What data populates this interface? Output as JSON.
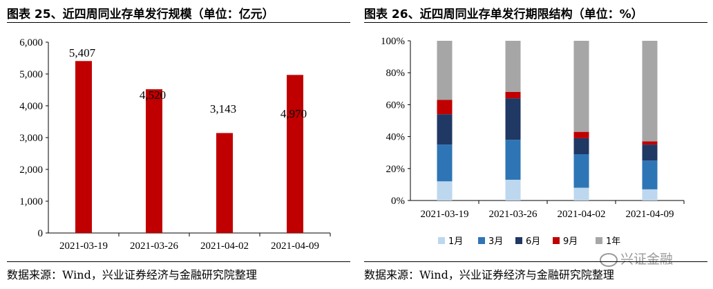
{
  "left": {
    "title": "图表 25、近四周同业存单发行规模（单位：亿元）",
    "source": "数据来源：Wind，兴业证券经济与金融研究院整理"
  },
  "right": {
    "title": "图表 26、近四周同业存单发行期限结构（单位：%）",
    "source": "数据来源：Wind，兴业证券经济与金融研究院整理"
  },
  "watermark": "兴证金融",
  "colors": {
    "bar": "#c00000",
    "m1": "#bdd7ee",
    "m3": "#2e75b6",
    "m6": "#1f3864",
    "m9": "#c00000",
    "y1": "#a6a6a6"
  },
  "chart_data": [
    {
      "type": "bar",
      "title": "图表 25、近四周同业存单发行规模（单位：亿元）",
      "categories": [
        "2021-03-19",
        "2021-03-26",
        "2021-04-02",
        "2021-04-09"
      ],
      "values": [
        5407,
        4520,
        3143,
        4970
      ],
      "data_labels": [
        "5,407",
        "4,520",
        "3,143",
        "4,970"
      ],
      "ylim": [
        0,
        6000
      ],
      "yticks": [
        "0",
        "1,000",
        "2,000",
        "3,000",
        "4,000",
        "5,000",
        "6,000"
      ],
      "grid": false,
      "legend": "none"
    },
    {
      "type": "bar",
      "stacked": true,
      "title": "图表 26、近四周同业存单发行期限结构（单位：%）",
      "categories": [
        "2021-03-19",
        "2021-03-26",
        "2021-04-02",
        "2021-04-09"
      ],
      "series": [
        {
          "name": "1月",
          "values": [
            12,
            13,
            8,
            7
          ]
        },
        {
          "name": "3月",
          "values": [
            23,
            25,
            21,
            18
          ]
        },
        {
          "name": "6月",
          "values": [
            19,
            26,
            10,
            10
          ]
        },
        {
          "name": "9月",
          "values": [
            9,
            4,
            4,
            2
          ]
        },
        {
          "name": "1年",
          "values": [
            37,
            32,
            57,
            63
          ]
        }
      ],
      "ylim": [
        0,
        100
      ],
      "yticks": [
        "0%",
        "20%",
        "40%",
        "60%",
        "80%",
        "100%"
      ],
      "grid": false,
      "legend": "bottom"
    }
  ]
}
